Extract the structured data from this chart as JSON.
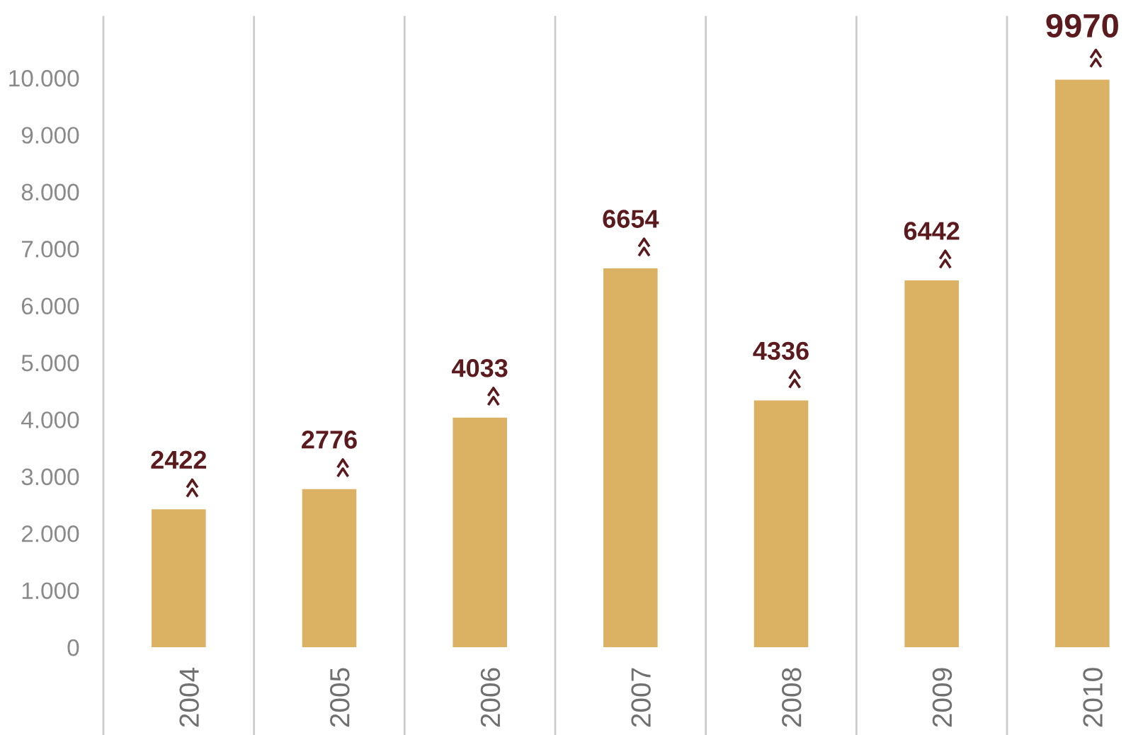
{
  "chart_data": {
    "type": "bar",
    "categories": [
      "2004",
      "2005",
      "2006",
      "2007",
      "2008",
      "2009",
      "2010"
    ],
    "values": [
      2422,
      2776,
      4033,
      6654,
      4336,
      6442,
      9970
    ],
    "color": "#dbb264",
    "data_labels": true,
    "ylim": [
      0,
      10000
    ],
    "yticks": [
      {
        "value": 0,
        "label": "0"
      },
      {
        "value": 1000,
        "label": "1.000"
      },
      {
        "value": 2000,
        "label": "2.000"
      },
      {
        "value": 3000,
        "label": "3.000"
      },
      {
        "value": 4000,
        "label": "4.000"
      },
      {
        "value": 5000,
        "label": "5.000"
      },
      {
        "value": 6000,
        "label": "6.000"
      },
      {
        "value": 7000,
        "label": "7.000"
      },
      {
        "value": 8000,
        "label": "8.000"
      },
      {
        "value": 9000,
        "label": "9.000"
      },
      {
        "value": 10000,
        "label": "10.000"
      }
    ],
    "grid": "x",
    "legend": false
  }
}
